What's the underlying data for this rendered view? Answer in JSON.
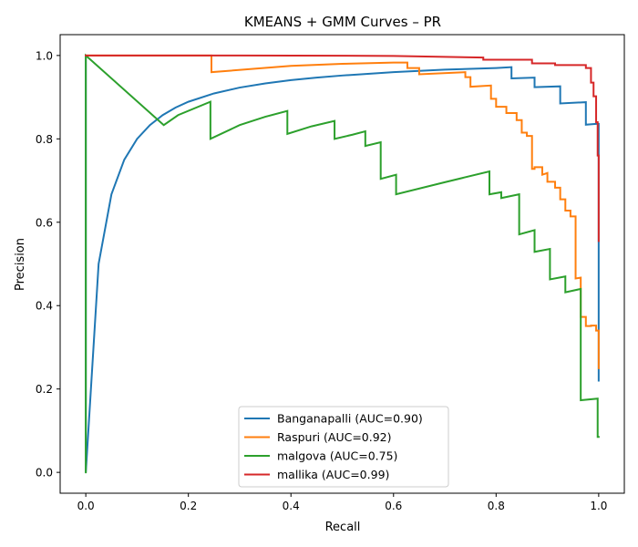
{
  "chart_data": {
    "type": "line",
    "title": "KMEANS + GMM Curves – PR",
    "xlabel": "Recall",
    "ylabel": "Precision",
    "xlim": [
      -0.05,
      1.05
    ],
    "ylim": [
      -0.05,
      1.05
    ],
    "xticks": [
      0.0,
      0.2,
      0.4,
      0.6,
      0.8,
      1.0
    ],
    "yticks": [
      0.0,
      0.2,
      0.4,
      0.6,
      0.8,
      1.0
    ],
    "xtick_labels": [
      "0.0",
      "0.2",
      "0.4",
      "0.6",
      "0.8",
      "1.0"
    ],
    "ytick_labels": [
      "0.0",
      "0.2",
      "0.4",
      "0.6",
      "0.8",
      "1.0"
    ],
    "grid": false,
    "legend_position": "bottom-center",
    "series": [
      {
        "name": "Banganapalli (AUC=0.90)",
        "color": "#1f77b4",
        "x": [
          0.0,
          0.0,
          0.01,
          0.025,
          0.05,
          0.075,
          0.1,
          0.125,
          0.15,
          0.175,
          0.2,
          0.25,
          0.3,
          0.35,
          0.4,
          0.45,
          0.5,
          0.55,
          0.6,
          0.65,
          0.7,
          0.75,
          0.8,
          0.83,
          0.83,
          0.875,
          0.875,
          0.925,
          0.925,
          0.975,
          0.975,
          0.995,
          0.995,
          1.0,
          1.0
        ],
        "y": [
          1.0,
          0.0,
          0.2,
          0.5,
          0.667,
          0.75,
          0.8,
          0.833,
          0.857,
          0.875,
          0.889,
          0.909,
          0.923,
          0.933,
          0.941,
          0.947,
          0.952,
          0.956,
          0.96,
          0.963,
          0.966,
          0.968,
          0.97,
          0.972,
          0.945,
          0.947,
          0.924,
          0.926,
          0.885,
          0.888,
          0.834,
          0.836,
          0.836,
          0.836,
          0.22
        ]
      },
      {
        "name": "Raspuri (AUC=0.92)",
        "color": "#ff7f0e",
        "x": [
          0.0,
          0.245,
          0.245,
          0.4,
          0.5,
          0.6,
          0.627,
          0.627,
          0.65,
          0.65,
          0.74,
          0.74,
          0.75,
          0.75,
          0.79,
          0.79,
          0.8,
          0.8,
          0.82,
          0.82,
          0.84,
          0.84,
          0.85,
          0.85,
          0.86,
          0.86,
          0.87,
          0.87,
          0.875,
          0.875,
          0.89,
          0.89,
          0.9,
          0.9,
          0.915,
          0.915,
          0.925,
          0.925,
          0.935,
          0.935,
          0.945,
          0.945,
          0.955,
          0.955,
          0.965,
          0.965,
          0.975,
          0.975,
          0.985,
          0.985,
          0.995,
          0.995,
          1.0,
          1.0
        ],
        "y": [
          1.0,
          1.0,
          0.96,
          0.975,
          0.98,
          0.983,
          0.983,
          0.97,
          0.97,
          0.955,
          0.96,
          0.948,
          0.948,
          0.925,
          0.928,
          0.896,
          0.896,
          0.877,
          0.877,
          0.862,
          0.862,
          0.845,
          0.845,
          0.815,
          0.815,
          0.807,
          0.807,
          0.728,
          0.728,
          0.732,
          0.732,
          0.714,
          0.718,
          0.697,
          0.697,
          0.683,
          0.683,
          0.655,
          0.655,
          0.628,
          0.628,
          0.614,
          0.614,
          0.465,
          0.467,
          0.373,
          0.373,
          0.351,
          0.351,
          0.352,
          0.352,
          0.34,
          0.34,
          0.25
        ]
      },
      {
        "name": "malgova (AUC=0.75)",
        "color": "#2ca02c",
        "x": [
          0.0,
          0.0,
          0.152,
          0.18,
          0.243,
          0.243,
          0.3,
          0.35,
          0.393,
          0.393,
          0.44,
          0.485,
          0.485,
          0.52,
          0.545,
          0.545,
          0.575,
          0.575,
          0.605,
          0.605,
          0.7,
          0.787,
          0.787,
          0.81,
          0.81,
          0.845,
          0.845,
          0.875,
          0.875,
          0.905,
          0.905,
          0.935,
          0.935,
          0.965,
          0.965,
          0.998,
          0.998,
          1.0
        ],
        "y": [
          0.0,
          1.0,
          0.833,
          0.857,
          0.889,
          0.8,
          0.833,
          0.853,
          0.867,
          0.812,
          0.83,
          0.843,
          0.8,
          0.81,
          0.818,
          0.783,
          0.792,
          0.704,
          0.714,
          0.667,
          0.696,
          0.722,
          0.667,
          0.672,
          0.658,
          0.667,
          0.571,
          0.581,
          0.529,
          0.536,
          0.463,
          0.47,
          0.432,
          0.44,
          0.173,
          0.177,
          0.085,
          0.085
        ]
      },
      {
        "name": "mallika (AUC=0.99)",
        "color": "#d62728",
        "x": [
          0.0,
          0.3,
          0.6,
          0.775,
          0.775,
          0.87,
          0.87,
          0.915,
          0.915,
          0.975,
          0.975,
          0.985,
          0.985,
          0.99,
          0.99,
          0.995,
          0.995,
          0.998,
          0.998,
          1.0,
          1.0
        ],
        "y": [
          1.0,
          1.0,
          0.999,
          0.995,
          0.99,
          0.99,
          0.981,
          0.981,
          0.977,
          0.977,
          0.97,
          0.97,
          0.935,
          0.935,
          0.902,
          0.902,
          0.84,
          0.84,
          0.76,
          0.76,
          0.555
        ]
      }
    ]
  }
}
